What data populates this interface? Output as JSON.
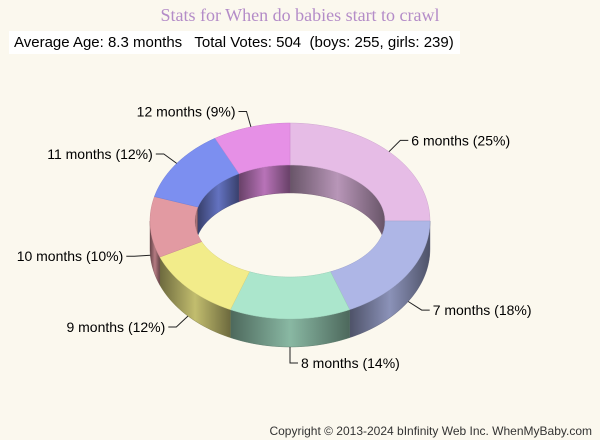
{
  "page": {
    "title": "Stats for When do babies start to crawl",
    "subtitle": "Average Age: 8.3 months   Total Votes: 504  (boys: 255, girls: 239)",
    "footer": "Copyright © 2013-2024 bInfinity Web Inc.  WhenMyBaby.com"
  },
  "chart_data": {
    "type": "pie",
    "style": "3d-donut",
    "title": "Stats for When do babies start to crawl",
    "categories": [
      "6 months",
      "7 months",
      "8 months",
      "9 months",
      "10 months",
      "11 months",
      "12 months"
    ],
    "values": [
      25,
      18,
      14,
      12,
      10,
      12,
      9
    ],
    "labels": [
      "6 months (25%)",
      "7 months (18%)",
      "8 months (14%)",
      "9 months (12%)",
      "10 months (10%)",
      "11 months (12%)",
      "12 months (9%)"
    ],
    "colors": [
      "#e6bce6",
      "#aeb6e6",
      "#abe6cc",
      "#f2ec8a",
      "#e29aa2",
      "#7c8ff0",
      "#e690e6"
    ]
  }
}
